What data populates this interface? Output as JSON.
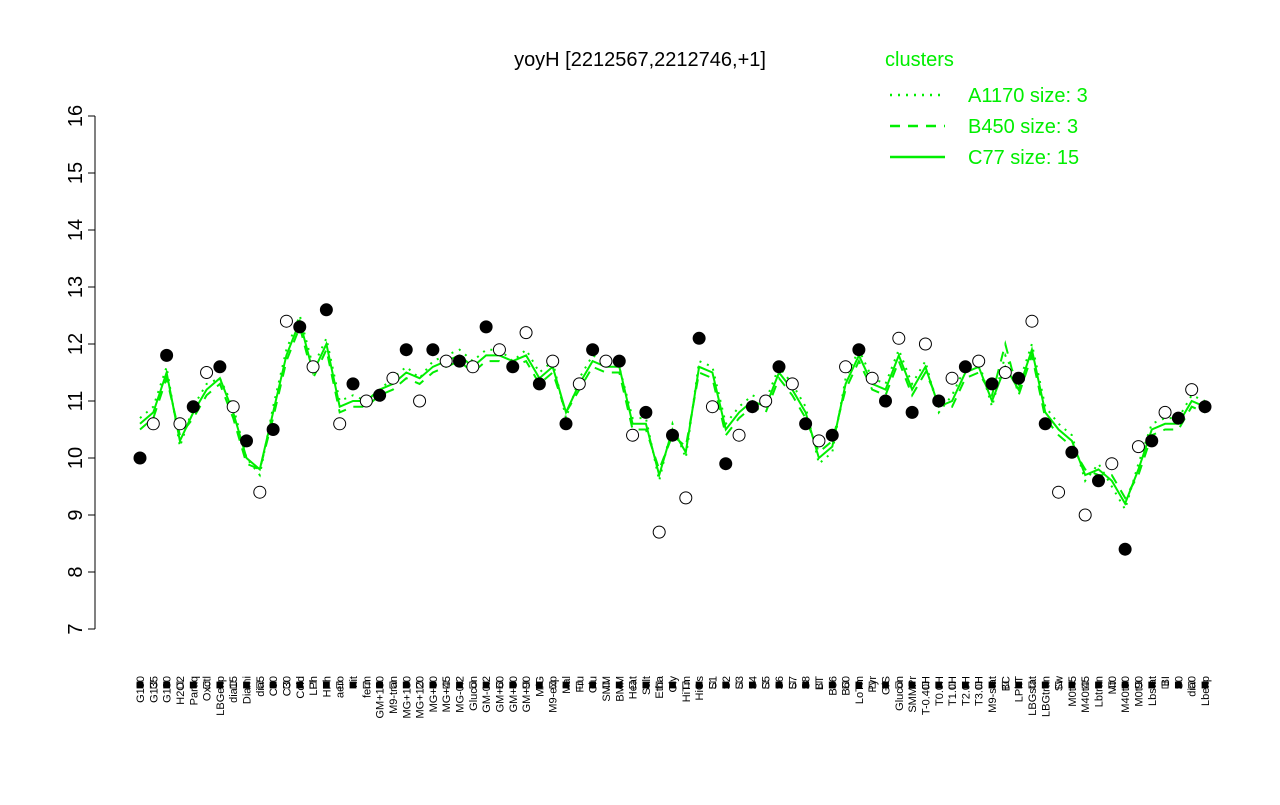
{
  "chart_data": {
    "type": "line",
    "title": "yoyH [2212567,2212746,+1]",
    "legend_title": "clusters",
    "legend_color": "#00ee00",
    "categories": [
      "G150",
      "G135",
      "G180",
      "H2O2",
      "Paraq",
      "Oxctl",
      "LBGexp",
      "dia15",
      "Diami",
      "dia5",
      "C90",
      "C30",
      "Cold",
      "LPh",
      "HPh",
      "aero",
      "nit",
      "ferm",
      "GM+150",
      "M9-tran",
      "MG+150",
      "MG+120",
      "MG+60",
      "MG+45",
      "MG-0.2",
      "Glucon",
      "GM-0.2",
      "GM+60",
      "GM+30",
      "GM+90",
      "M/G",
      "M9-exp",
      "Mal",
      "Fru",
      "Glu",
      "SMM",
      "BMM",
      "Heat",
      "Salt",
      "Etha",
      "Gly",
      "HiTm",
      "HiOs",
      "S1",
      "S2",
      "S3",
      "S4",
      "S5",
      "S6",
      "S7",
      "S8",
      "BT",
      "B36",
      "B60",
      "LoTm",
      "Pyr",
      "G/S",
      "Glucon",
      "SMMPr",
      "T-0.40H",
      "T0.0H",
      "T1.0H",
      "T2.0H",
      "T3.0H",
      "M9-stat",
      "BC",
      "LPhT",
      "LBGstat",
      "LBGtran",
      "Sw",
      "M0t45",
      "M40t45",
      "Lbtran",
      "Mt0",
      "M40t90",
      "M0t90",
      "Lbstat",
      "BI",
      "S0",
      "dia0",
      "Lbexp"
    ],
    "points": [
      10.0,
      10.6,
      11.8,
      10.6,
      10.9,
      11.5,
      11.6,
      10.9,
      10.3,
      9.4,
      10.5,
      12.4,
      12.3,
      11.6,
      12.6,
      10.6,
      11.3,
      11.0,
      11.1,
      11.4,
      11.9,
      11.0,
      11.9,
      11.7,
      11.7,
      11.6,
      12.3,
      11.9,
      11.6,
      12.2,
      11.3,
      11.7,
      10.6,
      11.3,
      11.9,
      11.7,
      11.7,
      10.4,
      10.8,
      8.7,
      10.4,
      9.3,
      12.1,
      10.9,
      9.9,
      10.4,
      10.9,
      11.0,
      11.6,
      11.3,
      10.6,
      10.3,
      10.4,
      11.6,
      11.9,
      11.4,
      11.0,
      12.1,
      10.8,
      12.0,
      11.0,
      11.4,
      11.6,
      11.7,
      11.3,
      11.5,
      11.4,
      12.4,
      10.6,
      9.4,
      10.1,
      9.0,
      9.6,
      9.9,
      8.4,
      10.2,
      10.3,
      10.8,
      10.7,
      11.2,
      10.9
    ],
    "series": [
      {
        "name": "A1170 size: 3",
        "color": "#00ee00",
        "style": "dotted",
        "values": [
          10.7,
          10.9,
          11.6,
          10.2,
          10.9,
          11.3,
          11.4,
          10.9,
          10.0,
          9.7,
          10.9,
          11.9,
          12.5,
          11.6,
          12.1,
          11.0,
          11.1,
          11.0,
          11.2,
          11.4,
          11.6,
          11.4,
          11.7,
          11.8,
          11.9,
          11.7,
          11.9,
          11.9,
          11.7,
          11.9,
          11.5,
          11.7,
          10.7,
          11.4,
          11.8,
          11.7,
          11.6,
          10.7,
          10.7,
          9.6,
          10.6,
          10.0,
          11.7,
          11.6,
          10.6,
          10.9,
          11.1,
          11.0,
          11.6,
          11.3,
          10.9,
          9.9,
          10.1,
          11.4,
          11.9,
          11.4,
          11.3,
          11.9,
          11.3,
          11.7,
          10.8,
          11.1,
          11.6,
          11.7,
          10.9,
          11.8,
          11.3,
          12.0,
          10.9,
          10.6,
          10.4,
          9.6,
          9.9,
          9.5,
          9.1,
          9.9,
          10.6,
          10.7,
          10.7,
          11.1,
          11.0
        ]
      },
      {
        "name": "B450 size: 3",
        "color": "#00ee00",
        "style": "dashed",
        "values": [
          10.5,
          10.7,
          11.4,
          10.4,
          10.7,
          11.1,
          11.3,
          10.7,
          9.9,
          9.8,
          10.7,
          11.7,
          12.3,
          11.4,
          11.9,
          10.8,
          10.9,
          10.9,
          11.1,
          11.2,
          11.4,
          11.3,
          11.5,
          11.6,
          11.7,
          11.5,
          11.7,
          11.7,
          11.6,
          11.7,
          11.3,
          11.5,
          10.8,
          11.2,
          11.6,
          11.5,
          11.5,
          10.5,
          10.5,
          9.8,
          10.4,
          10.2,
          11.5,
          11.4,
          10.4,
          10.7,
          10.9,
          10.8,
          11.4,
          11.1,
          10.7,
          10.1,
          10.3,
          11.2,
          11.7,
          11.2,
          11.1,
          11.7,
          11.1,
          11.5,
          11.0,
          10.9,
          11.4,
          11.5,
          11.1,
          12.0,
          11.1,
          11.8,
          10.7,
          10.4,
          10.2,
          9.8,
          9.7,
          9.7,
          9.3,
          9.7,
          10.4,
          10.5,
          10.5,
          10.9,
          10.8
        ]
      },
      {
        "name": "C77 size: 15",
        "color": "#00ee00",
        "style": "solid",
        "values": [
          10.6,
          10.8,
          11.5,
          10.3,
          10.8,
          11.2,
          11.4,
          10.8,
          10.0,
          9.8,
          10.8,
          11.8,
          12.4,
          11.5,
          12.0,
          10.9,
          11.0,
          11.0,
          11.2,
          11.3,
          11.5,
          11.4,
          11.6,
          11.7,
          11.8,
          11.6,
          11.8,
          11.8,
          11.7,
          11.8,
          11.4,
          11.6,
          10.8,
          11.3,
          11.7,
          11.6,
          11.6,
          10.6,
          10.6,
          9.7,
          10.5,
          10.1,
          11.6,
          11.5,
          10.5,
          10.8,
          11.0,
          10.9,
          11.5,
          11.2,
          10.8,
          10.0,
          10.2,
          11.3,
          11.8,
          11.3,
          11.2,
          11.8,
          11.2,
          11.6,
          10.9,
          11.0,
          11.5,
          11.6,
          11.0,
          11.6,
          11.2,
          11.9,
          10.8,
          10.5,
          10.3,
          9.7,
          9.8,
          9.6,
          9.2,
          9.8,
          10.5,
          10.6,
          10.6,
          11.0,
          10.9
        ]
      }
    ],
    "ylim": [
      7,
      16
    ],
    "yticks": [
      7,
      8,
      9,
      10,
      11,
      12,
      13,
      14,
      15,
      16
    ]
  }
}
